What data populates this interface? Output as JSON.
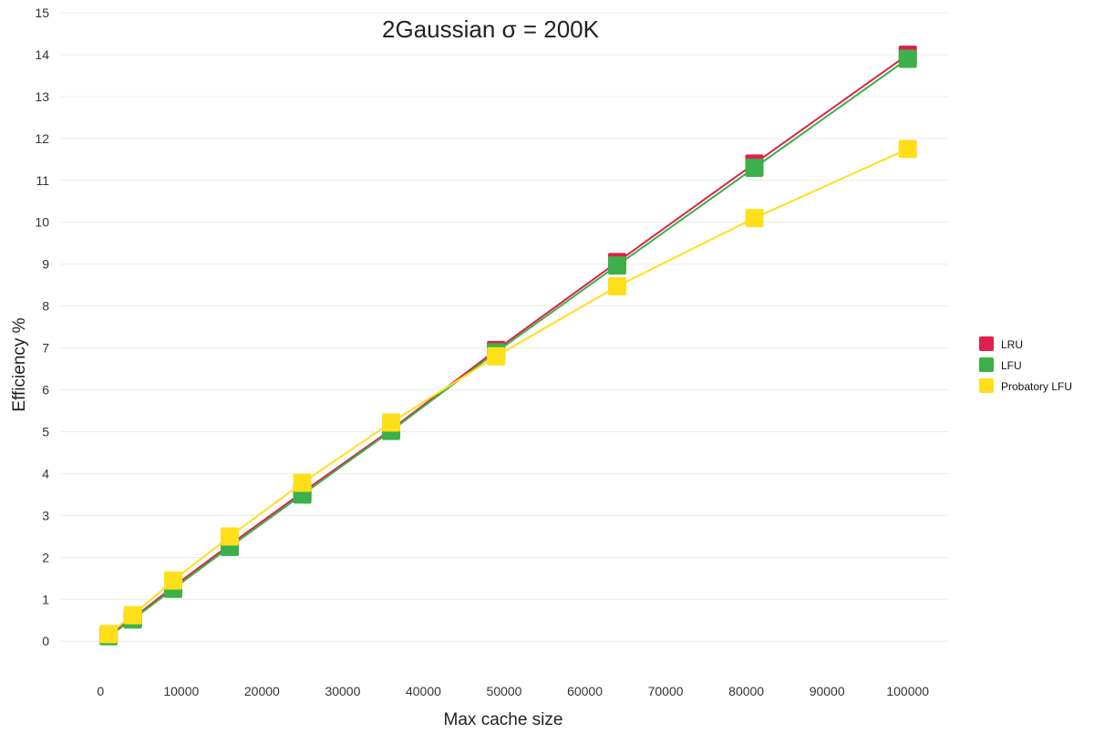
{
  "chart_data": {
    "type": "line",
    "title": "2Gaussian σ = 200K",
    "xlabel": "Max cache size",
    "ylabel": "Efficiency %",
    "xlim": [
      -5000,
      105000
    ],
    "ylim": [
      -0.8,
      15
    ],
    "x_ticks": [
      0,
      10000,
      20000,
      30000,
      40000,
      50000,
      60000,
      70000,
      80000,
      90000,
      100000
    ],
    "y_ticks": [
      0,
      1,
      2,
      3,
      4,
      5,
      6,
      7,
      8,
      9,
      10,
      11,
      12,
      13,
      14,
      15
    ],
    "grid": "horizontal",
    "legend_position": "right",
    "x": [
      1000,
      4000,
      9000,
      16000,
      25000,
      36000,
      49000,
      64000,
      81000,
      100000
    ],
    "series": [
      {
        "name": "LRU",
        "color": "#e0204c",
        "values": [
          0.15,
          0.55,
          1.3,
          2.3,
          3.55,
          5.05,
          6.95,
          9.05,
          11.4,
          14.0
        ]
      },
      {
        "name": "LFU",
        "color": "#3cb04a",
        "values": [
          0.12,
          0.52,
          1.25,
          2.25,
          3.5,
          5.02,
          6.9,
          8.97,
          11.3,
          13.9
        ]
      },
      {
        "name": "Probatory LFU",
        "color": "#ffdf1a",
        "values": [
          0.17,
          0.62,
          1.45,
          2.5,
          3.78,
          5.22,
          6.8,
          8.47,
          10.1,
          11.75
        ]
      }
    ]
  }
}
